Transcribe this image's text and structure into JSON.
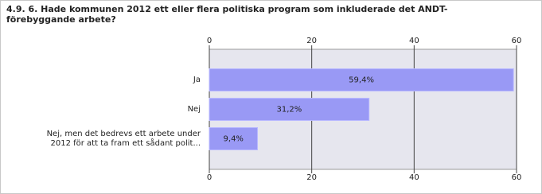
{
  "chart_data": {
    "type": "hbar",
    "title": "4.9. 6. Hade kommunen 2012 ett eller flera politiska program som inkluderade det ANDT-förebyggande arbete?",
    "categories": [
      "Ja",
      "Nej",
      "Nej, men det bedrevs ett arbete under 2012 för att ta fram ett sådant polit..."
    ],
    "values": [
      59.4,
      31.2,
      9.4
    ],
    "value_labels": [
      "59,4%",
      "31,2%",
      "9,4%"
    ],
    "color": "#9999f5",
    "xlim": [
      0,
      60
    ],
    "xticks": [
      0,
      20,
      40,
      60
    ],
    "grid": true
  }
}
